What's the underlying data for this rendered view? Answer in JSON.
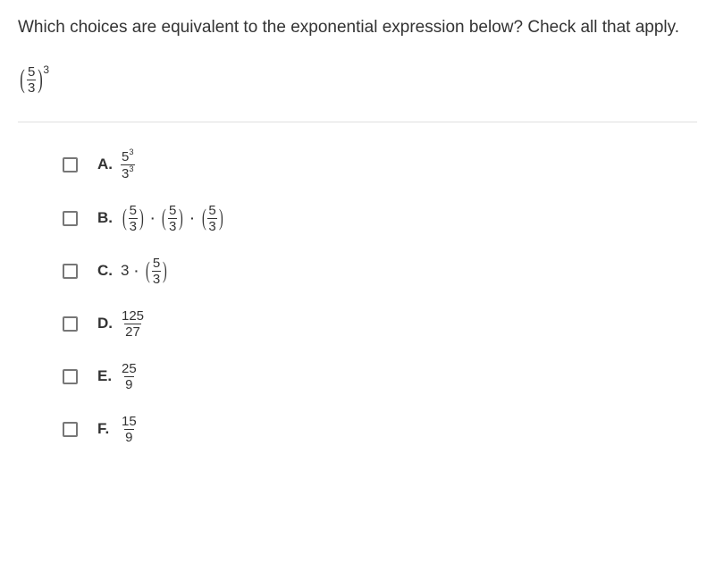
{
  "question": {
    "text": "Which choices are equivalent to the exponential expression below? Check all that apply.",
    "expression": {
      "base_num": "5",
      "base_den": "3",
      "exponent": "3"
    }
  },
  "choices": [
    {
      "letter": "A.",
      "type": "frac_pow",
      "num_base": "5",
      "num_exp": "3",
      "den_base": "3",
      "den_exp": "3"
    },
    {
      "letter": "B.",
      "type": "triple_prod",
      "num": "5",
      "den": "3"
    },
    {
      "letter": "C.",
      "type": "scalar_times_frac",
      "scalar": "3",
      "num": "5",
      "den": "3"
    },
    {
      "letter": "D.",
      "type": "frac",
      "num": "125",
      "den": "27"
    },
    {
      "letter": "E.",
      "type": "frac",
      "num": "25",
      "den": "9"
    },
    {
      "letter": "F.",
      "type": "frac",
      "num": "15",
      "den": "9"
    }
  ],
  "styling": {
    "background_color": "#ffffff",
    "text_color": "#333333",
    "divider_color": "#e0e0e0",
    "checkbox_border": "#777777",
    "font_family": "Arial",
    "question_fontsize": 19,
    "choice_fontsize": 17
  }
}
